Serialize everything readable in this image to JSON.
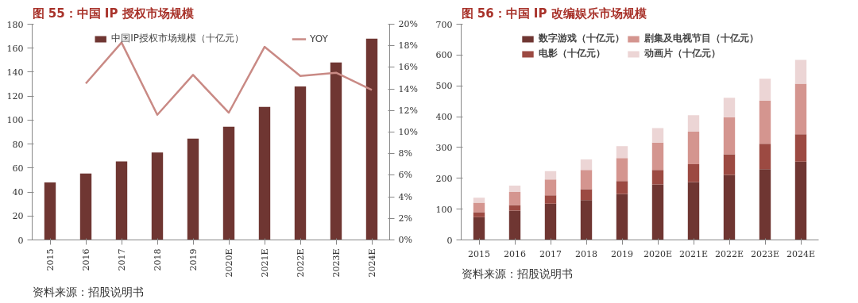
{
  "chart_data": [
    {
      "type": "bar",
      "title": "图 55：中国 IP 授权市场规模",
      "categories": [
        "2015",
        "2016",
        "2017",
        "2018",
        "2019",
        "2020E",
        "2021E",
        "2022E",
        "2023E",
        "2024E"
      ],
      "series": [
        {
          "name": "中国IP授权市场规模（十亿元）",
          "color": "#6f3632",
          "values": [
            48,
            55.5,
            65.5,
            73,
            84.5,
            94.5,
            111,
            128,
            148,
            168
          ]
        },
        {
          "name": "YOY",
          "type": "line",
          "axis": "y2",
          "color": "#c98a85",
          "values": [
            null,
            14.5,
            18.3,
            11.6,
            15.3,
            11.8,
            17.9,
            15.2,
            15.5,
            13.9
          ]
        }
      ],
      "ylim": [
        0,
        180
      ],
      "yticks": [
        0,
        20,
        40,
        60,
        80,
        100,
        120,
        140,
        160,
        180
      ],
      "y2lim": [
        0,
        20
      ],
      "y2ticks": [
        {
          "value": 0,
          "label": "0%"
        },
        {
          "value": 2,
          "label": "2%"
        },
        {
          "value": 4,
          "label": "4%"
        },
        {
          "value": 6,
          "label": "6%"
        },
        {
          "value": 8,
          "label": "8%"
        },
        {
          "value": 10,
          "label": "10%"
        },
        {
          "value": 12,
          "label": "12%"
        },
        {
          "value": 14,
          "label": "14%"
        },
        {
          "value": 16,
          "label": "16%"
        },
        {
          "value": 18,
          "label": "18%"
        },
        {
          "value": 20,
          "label": "20%"
        }
      ],
      "legend": "top",
      "grid": false,
      "annotations": [
        "资料来源：招股说明书"
      ]
    },
    {
      "type": "bar",
      "stacked": true,
      "title": "图 56：中国 IP 改编娱乐市场规模",
      "categories": [
        "2015",
        "2016",
        "2017",
        "2018",
        "2019",
        "2020E",
        "2021E",
        "2022E",
        "2023E",
        "2024E"
      ],
      "series": [
        {
          "name": "数字游戏（十亿元）",
          "color": "#6f3632",
          "values": [
            74,
            95,
            118,
            129,
            149,
            180,
            188,
            211,
            230,
            254
          ]
        },
        {
          "name": "电影（十亿元）",
          "color": "#9c4a42",
          "values": [
            16,
            18,
            27,
            36,
            42,
            47,
            58,
            67,
            82,
            89
          ]
        },
        {
          "name": "剧集及电视节目（十亿元）",
          "color": "#d4958f",
          "values": [
            31,
            43,
            51,
            62,
            75,
            89,
            105,
            120,
            140,
            164
          ]
        },
        {
          "name": "动画片（十亿元）",
          "color": "#ecd5d5",
          "values": [
            16,
            20,
            27,
            34,
            38,
            47,
            54,
            63,
            71,
            77
          ]
        }
      ],
      "ylim": [
        0,
        700
      ],
      "yticks": [
        0,
        100,
        200,
        300,
        400,
        500,
        600,
        700
      ],
      "legend": "top",
      "grid": false,
      "annotations": [
        "资料来源：招股说明书"
      ]
    }
  ]
}
